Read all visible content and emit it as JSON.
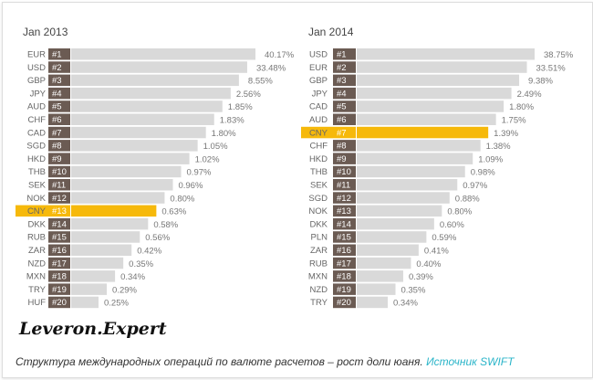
{
  "chart_data": [
    {
      "type": "bar",
      "title": "Jan 2013",
      "highlight": "CNY",
      "categories": [
        "EUR",
        "USD",
        "GBP",
        "JPY",
        "AUD",
        "CHF",
        "CAD",
        "SGD",
        "HKD",
        "THB",
        "SEK",
        "NOK",
        "CNY",
        "DKK",
        "RUB",
        "ZAR",
        "NZD",
        "MXN",
        "TRY",
        "HUF"
      ],
      "ranks": [
        "#1",
        "#2",
        "#3",
        "#4",
        "#5",
        "#6",
        "#7",
        "#8",
        "#9",
        "#10",
        "#11",
        "#12",
        "#13",
        "#14",
        "#15",
        "#16",
        "#17",
        "#18",
        "#19",
        "#20"
      ],
      "values": [
        40.17,
        33.48,
        8.55,
        2.56,
        1.85,
        1.83,
        1.8,
        1.05,
        1.02,
        0.97,
        0.96,
        0.8,
        0.63,
        0.58,
        0.56,
        0.42,
        0.35,
        0.34,
        0.29,
        0.25
      ],
      "labels": [
        "40.17%",
        "33.48%",
        "8.55%",
        "2.56%",
        "1.85%",
        "1.83%",
        "1.80%",
        "1.05%",
        "1.02%",
        "0.97%",
        "0.96%",
        "0.80%",
        "0.63%",
        "0.58%",
        "0.56%",
        "0.42%",
        "0.35%",
        "0.34%",
        "0.29%",
        "0.25%"
      ]
    },
    {
      "type": "bar",
      "title": "Jan 2014",
      "highlight": "CNY",
      "categories": [
        "USD",
        "EUR",
        "GBP",
        "JPY",
        "CAD",
        "AUD",
        "CNY",
        "CHF",
        "HKD",
        "THB",
        "SEK",
        "SGD",
        "NOK",
        "DKK",
        "PLN",
        "ZAR",
        "RUB",
        "MXN",
        "NZD",
        "TRY"
      ],
      "ranks": [
        "#1",
        "#2",
        "#3",
        "#4",
        "#5",
        "#6",
        "#7",
        "#8",
        "#9",
        "#10",
        "#11",
        "#12",
        "#13",
        "#14",
        "#15",
        "#16",
        "#17",
        "#18",
        "#19",
        "#20"
      ],
      "values": [
        38.75,
        33.51,
        9.38,
        2.49,
        1.8,
        1.75,
        1.39,
        1.38,
        1.09,
        0.98,
        0.97,
        0.88,
        0.8,
        0.6,
        0.59,
        0.41,
        0.4,
        0.39,
        0.35,
        0.34
      ],
      "labels": [
        "38.75%",
        "33.51%",
        "9.38%",
        "2.49%",
        "1.80%",
        "1.75%",
        "1.39%",
        "1.38%",
        "1.09%",
        "0.98%",
        "0.97%",
        "0.88%",
        "0.80%",
        "0.60%",
        "0.59%",
        "0.41%",
        "0.40%",
        "0.39%",
        "0.35%",
        "0.34%"
      ]
    }
  ],
  "colors": {
    "bar": "#d9d9d9",
    "tag": "#6b5b53",
    "highlight": "#f6b90b",
    "highlight_tag": "#f6b90b"
  },
  "logo": "Leveron.Expert",
  "caption": {
    "text": "Структура международных операций по валюте расчетов – рост доли юаня. ",
    "source": "Источник SWIFT"
  }
}
